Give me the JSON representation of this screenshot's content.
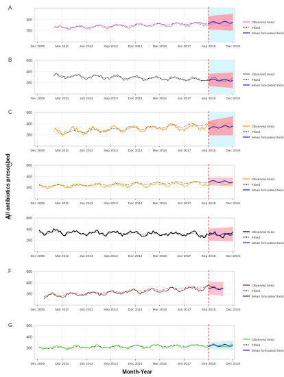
{
  "figure": {
    "ylabel": "All antibiotics prescribed",
    "xlabel": "Month-Year"
  },
  "legend_labels": [
    "Observed trend",
    "Fitted",
    "Mean forecasted trend"
  ],
  "colors": {
    "fitted": "#000000",
    "forecast_mean": "#1f1fd6",
    "split_line": "#e8382e",
    "grid": "#d9d9d9"
  },
  "chart_data": [
    {
      "type": "line",
      "title": "A",
      "x_range": [
        "2009-10",
        "2020-01"
      ],
      "ylim": [
        0,
        600
      ],
      "grid": true,
      "legend": "right",
      "yticks": [
        200,
        400
      ],
      "ytick_labels": [
        "200",
        "400"
      ],
      "xticks": [
        "2009-12",
        "2011-03",
        "2012-06",
        "2013-09",
        "2014-12",
        "2016-03",
        "2017-06",
        "2018-09",
        "2019-12"
      ],
      "xtick_labels": [
        "Dec 2009",
        "Mar 2011",
        "Jun 2012",
        "Sep 2013",
        "Dec 2014",
        "Mar 2016",
        "Jun 2017",
        "Sep 2018",
        "Dec 2019"
      ],
      "observed_color": "#f06fd0",
      "band_color": "#ff9aa8",
      "forecast_bg": "#d6f7fb",
      "observed_start": "2010-10",
      "forecast_start": "2018-09",
      "forecast_end": "2019-12",
      "observed_base": [
        250,
        330
      ],
      "observed_amp": 45,
      "observed_phase": 0.3,
      "fitted": [
        [
          250,
          340
        ]
      ],
      "forecast_mean": [
        340,
        350
      ],
      "forecast_band": [
        120,
        150
      ],
      "series": [
        {
          "name": "Observed trend",
          "role": "observed"
        },
        {
          "name": "Fitted",
          "role": "fitted"
        },
        {
          "name": "Mean forecasted trend",
          "role": "forecast"
        }
      ]
    },
    {
      "type": "line",
      "title": "B",
      "x_range": [
        "2009-10",
        "2020-01"
      ],
      "ylim": [
        0,
        600
      ],
      "grid": true,
      "legend": "right",
      "yticks": [
        200,
        400,
        600
      ],
      "ytick_labels": [
        "200",
        "400",
        "600"
      ],
      "xticks": [
        "2009-12",
        "2011-03",
        "2012-06",
        "2013-09",
        "2014-12",
        "2016-03",
        "2017-06",
        "2018-09",
        "2019-12"
      ],
      "xtick_labels": [
        "Dec 2009",
        "Mar 2011",
        "Jun 2012",
        "Sep 2013",
        "Dec 2014",
        "Mar 2016",
        "Jun 2017",
        "Sep 2018",
        "Dec 2019"
      ],
      "observed_color": "#6a6a6a",
      "band_color": "#ff9aa8",
      "forecast_bg": "#d6f7fb",
      "observed_start": "2010-10",
      "forecast_start": "2018-09",
      "forecast_end": "2019-12",
      "observed_base": [
        320,
        250
      ],
      "observed_amp": 50,
      "observed_phase": 1.1,
      "fitted": [
        [
          330,
          250
        ]
      ],
      "forecast_mean": [
        250,
        245
      ],
      "forecast_band": [
        110,
        140
      ],
      "series": [
        {
          "name": "Observed trend",
          "role": "observed"
        },
        {
          "name": "Fitted",
          "role": "fitted"
        },
        {
          "name": "Mean forecasted trend",
          "role": "forecast"
        }
      ]
    },
    {
      "type": "line",
      "title": "C",
      "x_range": [
        "2009-10",
        "2020-01"
      ],
      "ylim": [
        0,
        600
      ],
      "grid": true,
      "legend": "right",
      "yticks": [
        200,
        400,
        600
      ],
      "ytick_labels": [
        "200",
        "400",
        "600"
      ],
      "xticks": [
        "2009-12",
        "2011-03",
        "2012-06",
        "2013-09",
        "2014-12",
        "2016-03",
        "2017-06",
        "2018-09",
        "2019-12"
      ],
      "xtick_labels": [
        "Dec 2009",
        "Mar 2011",
        "Jun 2012",
        "Sep 2013",
        "Dec 2014",
        "Mar 2016",
        "Jun 2017",
        "Sep 2018",
        "Dec 2019"
      ],
      "observed_color": "#ff8c00",
      "band_color": "#ff9aa8",
      "forecast_bg": "#d6f7fb",
      "observed_start": "2010-10",
      "forecast_start": "2018-09",
      "forecast_end": "2019-12",
      "observed_base": [
        260,
        370
      ],
      "observed_amp": 70,
      "observed_phase": 2.0,
      "fitted": [
        [
          230,
          390
        ]
      ],
      "forecast_mean": [
        320,
        360
      ],
      "forecast_band": [
        130,
        170
      ],
      "series": [
        {
          "name": "Observed trend",
          "role": "observed"
        },
        {
          "name": "Fitted",
          "role": "fitted"
        },
        {
          "name": "Mean forecasted trend",
          "role": "forecast"
        }
      ]
    },
    {
      "type": "line",
      "title": "D",
      "x_range": [
        "2009-10",
        "2020-01"
      ],
      "ylim": [
        0,
        600
      ],
      "grid": true,
      "legend": "right",
      "yticks": [
        200,
        400,
        600
      ],
      "ytick_labels": [
        "200",
        "400",
        "600"
      ],
      "xticks": [
        "2009-12",
        "2011-03",
        "2012-06",
        "2013-09",
        "2014-12",
        "2016-03",
        "2017-06",
        "2018-09",
        "2019-12"
      ],
      "xtick_labels": [
        "Dec 2009",
        "Mar 2011",
        "Jun 2012",
        "Sep 2013",
        "Dec 2014",
        "Mar 2016",
        "Jun 2017",
        "Sep 2018",
        "Dec 2019"
      ],
      "observed_color": "#f0a800",
      "band_color": "#ffc0c8",
      "forecast_bg": "#ffffff",
      "observed_start": "2010-01",
      "forecast_start": "2018-09",
      "forecast_end": "2019-12",
      "observed_base": [
        220,
        280
      ],
      "observed_amp": 45,
      "observed_phase": 0.7,
      "fitted": [
        [
          230,
          300
        ]
      ],
      "forecast_mean": [
        310,
        300
      ],
      "forecast_band": [
        70,
        80
      ],
      "series": [
        {
          "name": "Observed trend",
          "role": "observed"
        },
        {
          "name": "Fitted",
          "role": "fitted"
        },
        {
          "name": "Mean forecasted trend",
          "role": "forecast"
        }
      ]
    },
    {
      "type": "line",
      "title": "E",
      "x_range": [
        "2009-10",
        "2020-01"
      ],
      "ylim": [
        0,
        600
      ],
      "grid": true,
      "legend": "right",
      "yticks": [
        200,
        400,
        600
      ],
      "ytick_labels": [
        "200",
        "400",
        "600"
      ],
      "xticks": [
        "2009-12",
        "2011-03",
        "2012-06",
        "2013-09",
        "2014-12",
        "2016-03",
        "2017-06",
        "2018-09",
        "2019-12"
      ],
      "xtick_labels": [
        "Dec 2009",
        "Mar 2011",
        "Jun 2012",
        "Sep 2013",
        "Dec 2014",
        "Mar 2016",
        "Jun 2017",
        "Sep 2018",
        "Dec 2019"
      ],
      "observed_color": "#000000",
      "band_color": "#ffb0bc",
      "forecast_bg": "#ffffff",
      "observed_start": "2010-01",
      "forecast_start": "2018-09",
      "forecast_end": "2019-12",
      "observed_base": [
        350,
        300
      ],
      "observed_amp": 55,
      "observed_phase": 1.6,
      "fitted": [
        [
          340,
          300
        ]
      ],
      "forecast_mean": [
        300,
        310
      ],
      "forecast_band": [
        110,
        130
      ],
      "series": [
        {
          "name": "Observed trend",
          "role": "observed"
        },
        {
          "name": "Fitted",
          "role": "fitted"
        },
        {
          "name": "Mean forecasted trend",
          "role": "forecast"
        }
      ]
    },
    {
      "type": "line",
      "title": "F",
      "x_range": [
        "2009-10",
        "2020-01"
      ],
      "ylim": [
        0,
        600
      ],
      "grid": true,
      "legend": "right",
      "yticks": [
        200,
        400,
        600
      ],
      "ytick_labels": [
        "200",
        "400",
        "600"
      ],
      "xticks": [
        "2009-12",
        "2011-03",
        "2012-06",
        "2013-09",
        "2014-12",
        "2016-03",
        "2017-06",
        "2018-09",
        "2019-12"
      ],
      "xtick_labels": [
        "Dec 2009",
        "Mar 2011",
        "Jun 2012",
        "Sep 2013",
        "Dec 2014",
        "Mar 2016",
        "Jun 2017",
        "Sep 2018",
        "Dec 2019"
      ],
      "observed_color": "#8b1a1a",
      "band_color": "#ffb8c4",
      "forecast_bg": "#ffffff",
      "observed_start": "2010-04",
      "forecast_start": "2018-09",
      "forecast_end": "2019-06",
      "observed_base": [
        160,
        320
      ],
      "observed_amp": 50,
      "observed_phase": 2.4,
      "fitted": [
        [
          170,
          330
        ]
      ],
      "forecast_mean": [
        300,
        290
      ],
      "forecast_band": [
        110,
        130
      ],
      "series": [
        {
          "name": "Observed trend",
          "role": "observed"
        },
        {
          "name": "Fitted",
          "role": "fitted"
        },
        {
          "name": "Mean forecasted trend",
          "role": "forecast"
        }
      ]
    },
    {
      "type": "line",
      "title": "G",
      "x_range": [
        "2009-10",
        "2020-01"
      ],
      "ylim": [
        0,
        600
      ],
      "grid": true,
      "legend": "right",
      "yticks": [
        200,
        400,
        600
      ],
      "ytick_labels": [
        "200",
        "400",
        "600"
      ],
      "xticks": [
        "2009-12",
        "2011-03",
        "2012-06",
        "2013-09",
        "2014-12",
        "2016-03",
        "2017-06",
        "2018-09",
        "2019-12"
      ],
      "xtick_labels": [
        "Dec 2009",
        "Mar 2011",
        "Jun 2012",
        "Sep 2013",
        "Dec 2014",
        "Mar 2016",
        "Jun 2017",
        "Sep 2018",
        "Dec 2019"
      ],
      "observed_color": "#3cdc14",
      "band_color": "#c8ecff",
      "forecast_bg": "#ffffff",
      "observed_start": "2010-01",
      "forecast_start": "2018-09",
      "forecast_end": "2019-12",
      "observed_base": [
        200,
        245
      ],
      "observed_amp": 40,
      "observed_phase": 0.9,
      "fitted": [
        [
          200,
          250
        ]
      ],
      "forecast_mean": [
        240,
        250
      ],
      "forecast_band": [
        60,
        80
      ],
      "series": [
        {
          "name": "Observed trend",
          "role": "observed"
        },
        {
          "name": "Fitted",
          "role": "fitted"
        },
        {
          "name": "Mean forecasted trend",
          "role": "forecast"
        }
      ]
    }
  ]
}
